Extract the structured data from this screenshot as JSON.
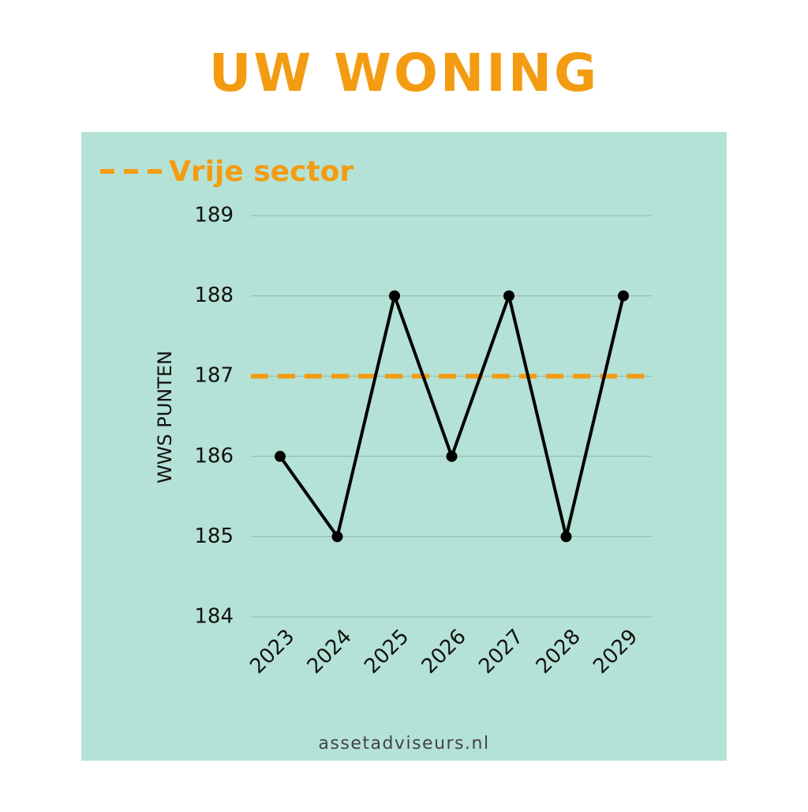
{
  "chart_data": {
    "type": "line",
    "title": "UW WONING",
    "y_label": "WWS PUNTEN",
    "footer": "assetadviseurs.nl",
    "categories": [
      "2023",
      "2024",
      "2025",
      "2026",
      "2027",
      "2028",
      "2029"
    ],
    "values": [
      186,
      185,
      188,
      186,
      188,
      185,
      188
    ],
    "color": "#000000",
    "reference_lines": [
      {
        "name": "Vrije sector",
        "value": 187,
        "color": "#f39c12"
      }
    ],
    "ylim": [
      184,
      189
    ],
    "yticks": [
      184,
      185,
      186,
      187,
      188,
      189
    ],
    "grid": true,
    "legend": "top-left"
  }
}
